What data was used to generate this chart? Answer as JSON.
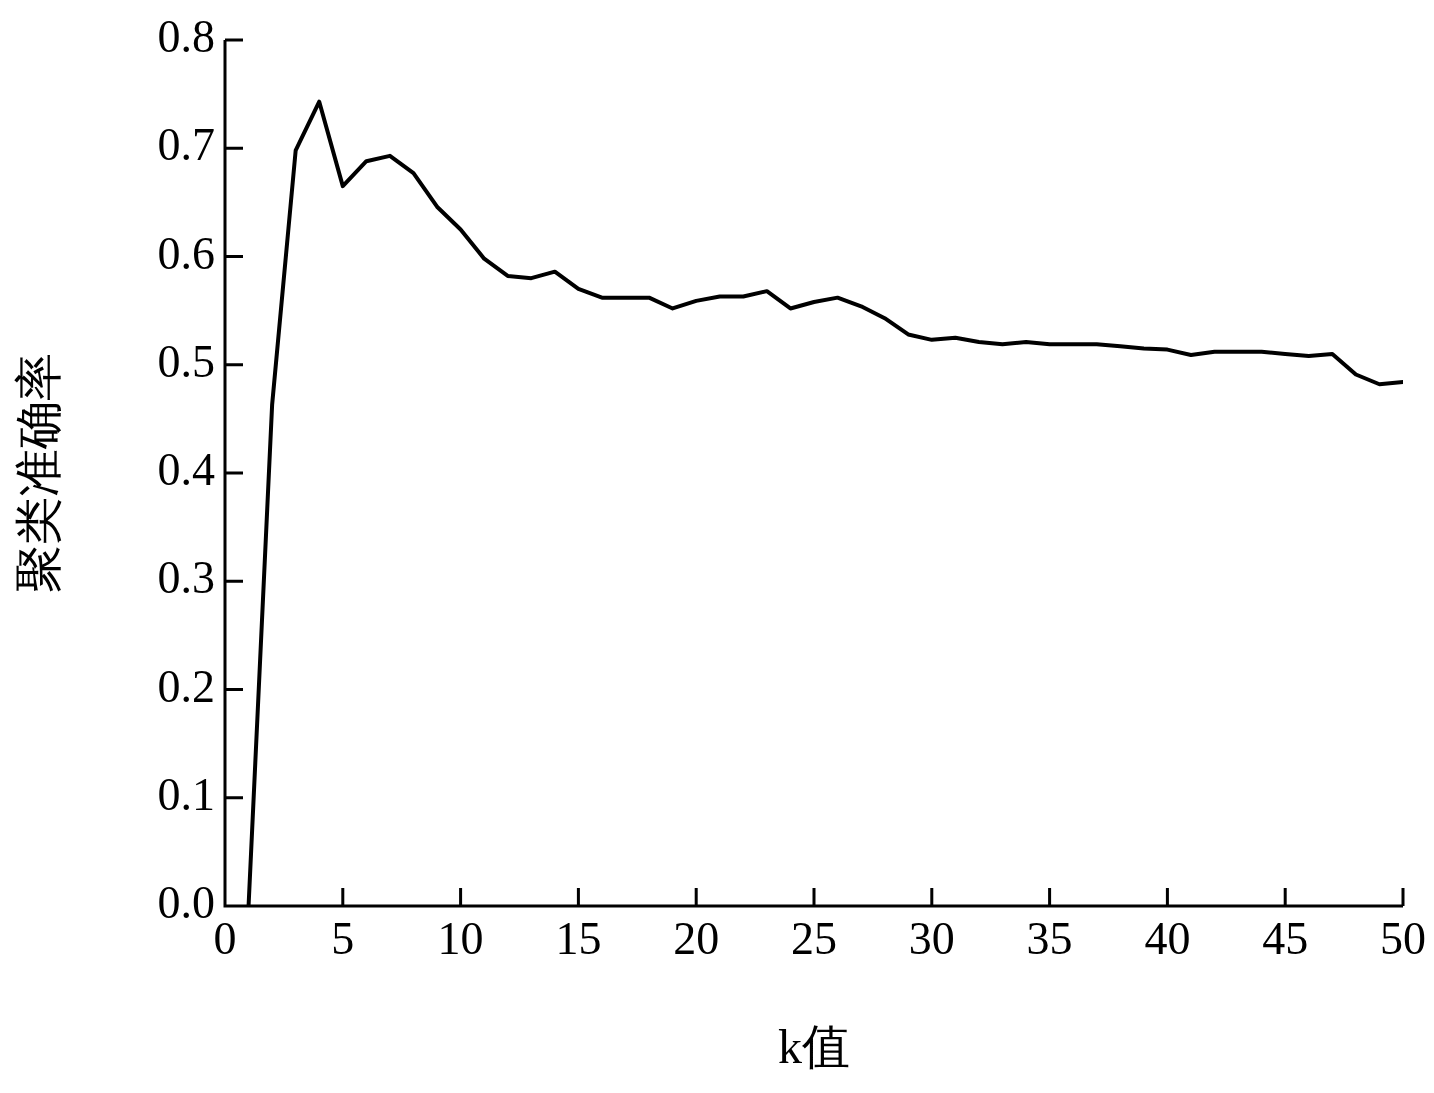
{
  "chart_data": {
    "type": "line",
    "xlabel": "k值",
    "ylabel": "聚类准确率",
    "x": [
      1,
      2,
      3,
      4,
      5,
      6,
      7,
      8,
      9,
      10,
      11,
      12,
      13,
      14,
      15,
      16,
      17,
      18,
      19,
      20,
      21,
      22,
      23,
      24,
      25,
      26,
      27,
      28,
      29,
      30,
      31,
      32,
      33,
      34,
      35,
      36,
      37,
      38,
      39,
      40,
      41,
      42,
      43,
      44,
      45,
      46,
      47,
      48,
      49,
      50
    ],
    "series": [
      {
        "color": "#000000",
        "values": [
          0,
          0.463,
          0.698,
          0.743,
          0.665,
          0.688,
          0.693,
          0.677,
          0.646,
          0.625,
          0.598,
          0.582,
          0.58,
          0.586,
          0.57,
          0.562,
          0.562,
          0.562,
          0.552,
          0.559,
          0.563,
          0.563,
          0.568,
          0.552,
          0.558,
          0.562,
          0.554,
          0.543,
          0.528,
          0.523,
          0.525,
          0.521,
          0.519,
          0.521,
          0.519,
          0.519,
          0.519,
          0.517,
          0.515,
          0.514,
          0.509,
          0.512,
          0.512,
          0.512,
          0.51,
          0.508,
          0.51,
          0.491,
          0.482,
          0.484
        ]
      }
    ],
    "xlim": [
      0,
      50
    ],
    "xticks": [
      0,
      5,
      10,
      15,
      20,
      25,
      30,
      35,
      40,
      45,
      50
    ],
    "ylim": [
      0,
      0.8
    ],
    "yticks": [
      {
        "value": 0,
        "label": "0.0"
      },
      {
        "value": 0.1,
        "label": "0.1"
      },
      {
        "value": 0.2,
        "label": "0.2"
      },
      {
        "value": 0.3,
        "label": "0.3"
      },
      {
        "value": 0.4,
        "label": "0.4"
      },
      {
        "value": 0.5,
        "label": "0.5"
      },
      {
        "value": 0.6,
        "label": "0.6"
      },
      {
        "value": 0.7,
        "label": "0.7"
      },
      {
        "value": 0.8,
        "label": "0.8"
      }
    ],
    "grid": false,
    "legend": false,
    "marker": "none",
    "line_style": "solid"
  }
}
